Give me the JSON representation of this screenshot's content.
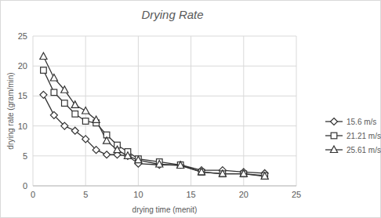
{
  "chart_data": {
    "type": "line",
    "title": "Drying Rate",
    "x_label": "drying time (menit)",
    "y_label": "drying rate (gram/min)",
    "x": [
      1,
      2,
      3,
      4,
      5,
      6,
      7,
      8,
      9,
      10,
      12,
      14,
      16,
      18,
      20,
      22
    ],
    "series": [
      {
        "name": "15.6 m/s",
        "color": "#333333",
        "marker": "diamond",
        "line_style": "solid",
        "values": [
          15.2,
          11.8,
          10,
          9.2,
          7.8,
          6,
          5.2,
          5.2,
          5,
          3.7,
          3.5,
          3.5,
          2.6,
          2.6,
          2.3,
          2.1
        ]
      },
      {
        "name": "21.21 m/s",
        "color": "#333333",
        "marker": "square",
        "line_style": "solid",
        "values": [
          19.3,
          15.6,
          13.8,
          12,
          10.8,
          10.5,
          8.5,
          6.8,
          5.7,
          4.5,
          4,
          3.5,
          2.3,
          2,
          2,
          1.7
        ]
      },
      {
        "name": "25.61 m/s",
        "color": "#333333",
        "marker": "triangle",
        "line_style": "solid",
        "values": [
          21.6,
          18,
          16,
          13.5,
          12.5,
          11,
          7.5,
          6,
          5,
          4.3,
          3.6,
          3.4,
          2.3,
          2,
          2,
          1.6
        ]
      }
    ],
    "xlim": [
      0,
      25
    ],
    "xticks": [
      0,
      5,
      10,
      15,
      20,
      25
    ],
    "ylim": [
      0,
      25
    ],
    "yticks": [
      0,
      5,
      10,
      15,
      20,
      25
    ],
    "grid": true,
    "legend": "right"
  }
}
